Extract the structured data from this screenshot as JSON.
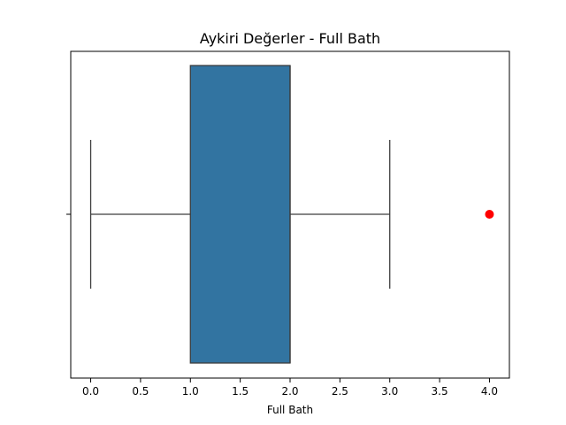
{
  "chart_data": {
    "type": "boxplot",
    "title": "Aykiri Değerler - Full Bath",
    "xlabel": "Full Bath",
    "ylabel": "",
    "xlim": [
      -0.2,
      4.2
    ],
    "x_ticks": [
      0.0,
      0.5,
      1.0,
      1.5,
      2.0,
      2.5,
      3.0,
      3.5,
      4.0
    ],
    "x_tick_labels": [
      "0.0",
      "0.5",
      "1.0",
      "1.5",
      "2.0",
      "2.5",
      "3.0",
      "3.5",
      "4.0"
    ],
    "box": {
      "whisker_low": 0.0,
      "q1": 1.0,
      "median": 2.0,
      "q3": 2.0,
      "whisker_high": 3.0,
      "outliers": [
        4.0
      ]
    },
    "grid": false,
    "colors": {
      "box_fill": "#3274a1",
      "box_edge": "#3d3d3d",
      "whisker": "#3d3d3d",
      "outlier": "#ff0000"
    }
  }
}
